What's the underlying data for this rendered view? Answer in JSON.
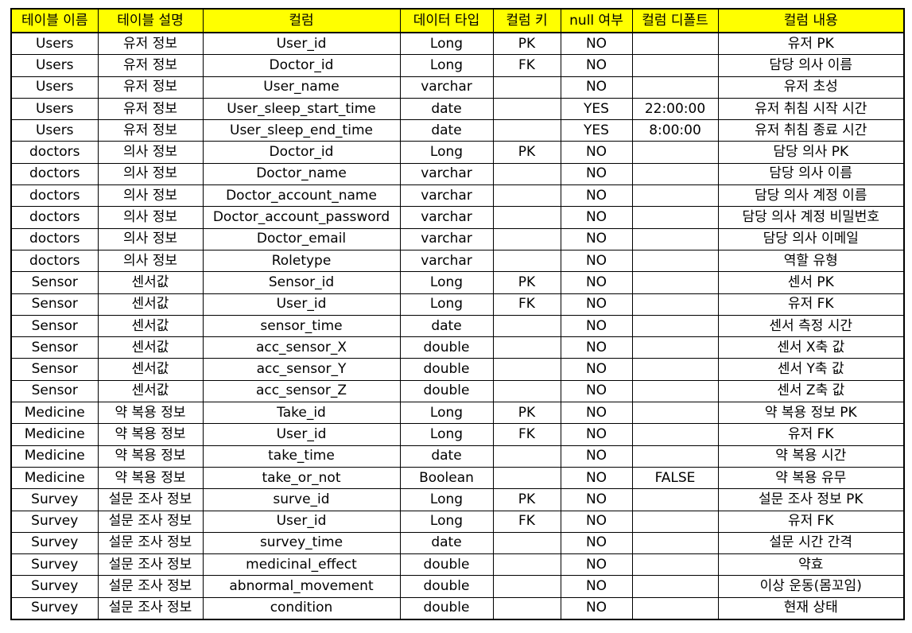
{
  "colors": {
    "header_background": "#ffff00",
    "border": "#000000",
    "text": "#000000"
  },
  "table": {
    "columns": [
      "테이블 이름",
      "테이블 설명",
      "컬럼",
      "데이터 타입",
      "컬럼 키",
      "null 여부",
      "컬럼 디폴트",
      "컬럼 내용"
    ],
    "rows": [
      [
        "Users",
        "유저 정보",
        "User_id",
        "Long",
        "PK",
        "NO",
        "",
        "유저 PK"
      ],
      [
        "Users",
        "유저 정보",
        "Doctor_id",
        "Long",
        "FK",
        "NO",
        "",
        "담당 의사 이름"
      ],
      [
        "Users",
        "유저 정보",
        "User_name",
        "varchar",
        "",
        "NO",
        "",
        "유저 초성"
      ],
      [
        "Users",
        "유저 정보",
        "User_sleep_start_time",
        "date",
        "",
        "YES",
        "22:00:00",
        "유저 취침 시작 시간"
      ],
      [
        "Users",
        "유저 정보",
        "User_sleep_end_time",
        "date",
        "",
        "YES",
        "8:00:00",
        "유저 취침 종료 시간"
      ],
      [
        "doctors",
        "의사 정보",
        "Doctor_id",
        "Long",
        "PK",
        "NO",
        "",
        "담당 의사 PK"
      ],
      [
        "doctors",
        "의사 정보",
        "Doctor_name",
        "varchar",
        "",
        "NO",
        "",
        "담당 의사 이름"
      ],
      [
        "doctors",
        "의사 정보",
        "Doctor_account_name",
        "varchar",
        "",
        "NO",
        "",
        "담당 의사 계정 이름"
      ],
      [
        "doctors",
        "의사 정보",
        "Doctor_account_password",
        "varchar",
        "",
        "NO",
        "",
        "담당 의사 계정 비밀번호"
      ],
      [
        "doctors",
        "의사 정보",
        "Doctor_email",
        "varchar",
        "",
        "NO",
        "",
        "담당 의사 이메일"
      ],
      [
        "doctors",
        "의사 정보",
        "Roletype",
        "varchar",
        "",
        "NO",
        "",
        "역할 유형"
      ],
      [
        "Sensor",
        "센서값",
        "Sensor_id",
        "Long",
        "PK",
        "NO",
        "",
        "센서 PK"
      ],
      [
        "Sensor",
        "센서값",
        "User_id",
        "Long",
        "FK",
        "NO",
        "",
        "유저 FK"
      ],
      [
        "Sensor",
        "센서값",
        "sensor_time",
        "date",
        "",
        "NO",
        "",
        "센서 측정 시간"
      ],
      [
        "Sensor",
        "센서값",
        "acc_sensor_X",
        "double",
        "",
        "NO",
        "",
        "센서 X축 값"
      ],
      [
        "Sensor",
        "센서값",
        "acc_sensor_Y",
        "double",
        "",
        "NO",
        "",
        "센서 Y축 값"
      ],
      [
        "Sensor",
        "센서값",
        "acc_sensor_Z",
        "double",
        "",
        "NO",
        "",
        "센서 Z축 값"
      ],
      [
        "Medicine",
        "약 복용 정보",
        "Take_id",
        "Long",
        "PK",
        "NO",
        "",
        "약 복용 정보 PK"
      ],
      [
        "Medicine",
        "약 복용 정보",
        "User_id",
        "Long",
        "FK",
        "NO",
        "",
        "유저 FK"
      ],
      [
        "Medicine",
        "약 복용 정보",
        "take_time",
        "date",
        "",
        "NO",
        "",
        "약 복용 시간"
      ],
      [
        "Medicine",
        "약 복용 정보",
        "take_or_not",
        "Boolean",
        "",
        "NO",
        "FALSE",
        "약 복용 유무"
      ],
      [
        "Survey",
        "설문 조사 정보",
        "surve_id",
        "Long",
        "PK",
        "NO",
        "",
        "설문 조사 정보 PK"
      ],
      [
        "Survey",
        "설문 조사 정보",
        "User_id",
        "Long",
        "FK",
        "NO",
        "",
        "유저 FK"
      ],
      [
        "Survey",
        "설문 조사 정보",
        "survey_time",
        "date",
        "",
        "NO",
        "",
        "설문 시간 간격"
      ],
      [
        "Survey",
        "설문 조사 정보",
        "medicinal_effect",
        "double",
        "",
        "NO",
        "",
        "약효"
      ],
      [
        "Survey",
        "설문 조사 정보",
        "abnormal_movement",
        "double",
        "",
        "NO",
        "",
        "이상 운동(몸꼬임)"
      ],
      [
        "Survey",
        "설문 조사 정보",
        "condition",
        "double",
        "",
        "NO",
        "",
        "현재 상태"
      ]
    ]
  }
}
